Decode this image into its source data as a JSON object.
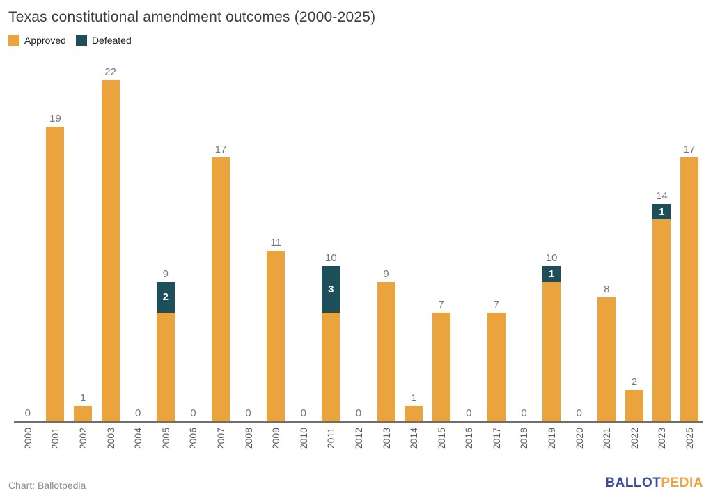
{
  "title": "Texas constitutional amendment outcomes (2000-2025)",
  "legend": {
    "approved_label": "Approved",
    "defeated_label": "Defeated"
  },
  "colors": {
    "approved": "#eba43d",
    "defeated": "#1d4f5a",
    "axis": "#6f6f6f",
    "total_label": "#767676",
    "logo_blue": "#3b4aa1",
    "logo_orange": "#f2a23b"
  },
  "chart_data": {
    "type": "bar",
    "stacked": true,
    "title": "Texas constitutional amendment outcomes (2000-2025)",
    "categories": [
      "2000",
      "2001",
      "2002",
      "2003",
      "2004",
      "2005",
      "2006",
      "2007",
      "2008",
      "2009",
      "2010",
      "2011",
      "2012",
      "2013",
      "2014",
      "2015",
      "2016",
      "2017",
      "2018",
      "2019",
      "2020",
      "2021",
      "2022",
      "2023",
      "2025"
    ],
    "series": [
      {
        "name": "Approved",
        "color": "#eba43d",
        "values": [
          0,
          19,
          1,
          22,
          0,
          7,
          0,
          17,
          0,
          11,
          0,
          7,
          0,
          9,
          1,
          7,
          0,
          7,
          0,
          9,
          0,
          8,
          2,
          13,
          17
        ]
      },
      {
        "name": "Defeated",
        "color": "#1d4f5a",
        "values": [
          0,
          0,
          0,
          0,
          0,
          2,
          0,
          0,
          0,
          0,
          0,
          3,
          0,
          0,
          0,
          0,
          0,
          0,
          0,
          1,
          0,
          0,
          0,
          1,
          0
        ]
      }
    ],
    "totals": [
      0,
      19,
      1,
      22,
      0,
      9,
      0,
      17,
      0,
      11,
      0,
      10,
      0,
      9,
      1,
      7,
      0,
      7,
      0,
      10,
      0,
      8,
      2,
      14,
      17
    ],
    "xlabel": "",
    "ylabel": "",
    "ylim": [
      0,
      23.4
    ],
    "grid": false,
    "legend_position": "top-left",
    "value_labels": "totals above bars; defeated counts in white inside teal segments; x labels rotated 90deg"
  },
  "footer": {
    "credit": "Chart: Ballotpedia",
    "logo_part1": "BALLOT",
    "logo_part2": "PEDIA"
  }
}
